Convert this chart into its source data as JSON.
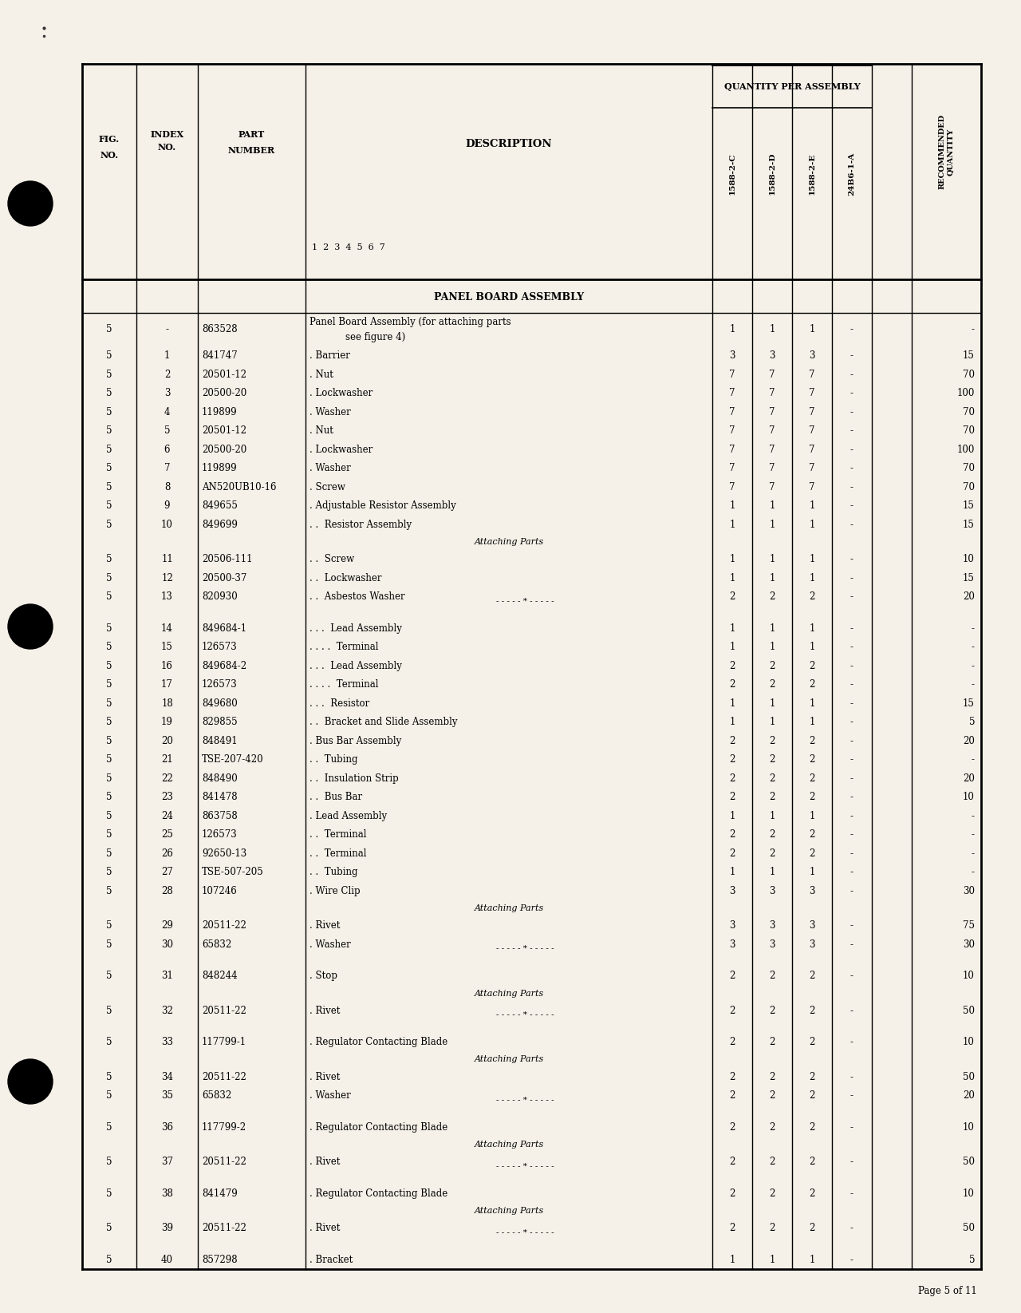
{
  "page_bg": "#f5f0e8",
  "rows": [
    {
      "fig": "5",
      "idx": "-",
      "part": "863528",
      "desc": "Panel Board Assembly (for attaching parts",
      "desc2": "see figure 4)",
      "c": "1",
      "d": "1",
      "e": "1",
      "b": "-",
      "rec": "-",
      "italic": false,
      "separator": false,
      "attaching": false
    },
    {
      "fig": "5",
      "idx": "1",
      "part": "841747",
      "desc": ". Barrier",
      "desc2": "",
      "c": "3",
      "d": "3",
      "e": "3",
      "b": "-",
      "rec": "15",
      "italic": false,
      "separator": false,
      "attaching": false
    },
    {
      "fig": "5",
      "idx": "2",
      "part": "20501-12",
      "desc": ". Nut",
      "desc2": "",
      "c": "7",
      "d": "7",
      "e": "7",
      "b": "-",
      "rec": "70",
      "italic": false,
      "separator": false,
      "attaching": false
    },
    {
      "fig": "5",
      "idx": "3",
      "part": "20500-20",
      "desc": ". Lockwasher",
      "desc2": "",
      "c": "7",
      "d": "7",
      "e": "7",
      "b": "-",
      "rec": "100",
      "italic": false,
      "separator": false,
      "attaching": false
    },
    {
      "fig": "5",
      "idx": "4",
      "part": "119899",
      "desc": ". Washer",
      "desc2": "",
      "c": "7",
      "d": "7",
      "e": "7",
      "b": "-",
      "rec": "70",
      "italic": false,
      "separator": false,
      "attaching": false
    },
    {
      "fig": "5",
      "idx": "5",
      "part": "20501-12",
      "desc": ". Nut",
      "desc2": "",
      "c": "7",
      "d": "7",
      "e": "7",
      "b": "-",
      "rec": "70",
      "italic": false,
      "separator": false,
      "attaching": false
    },
    {
      "fig": "5",
      "idx": "6",
      "part": "20500-20",
      "desc": ". Lockwasher",
      "desc2": "",
      "c": "7",
      "d": "7",
      "e": "7",
      "b": "-",
      "rec": "100",
      "italic": false,
      "separator": false,
      "attaching": false
    },
    {
      "fig": "5",
      "idx": "7",
      "part": "119899",
      "desc": ". Washer",
      "desc2": "",
      "c": "7",
      "d": "7",
      "e": "7",
      "b": "-",
      "rec": "70",
      "italic": false,
      "separator": false,
      "attaching": false
    },
    {
      "fig": "5",
      "idx": "8",
      "part": "AN520UB10-16",
      "desc": ". Screw",
      "desc2": "",
      "c": "7",
      "d": "7",
      "e": "7",
      "b": "-",
      "rec": "70",
      "italic": false,
      "separator": false,
      "attaching": false
    },
    {
      "fig": "5",
      "idx": "9",
      "part": "849655",
      "desc": ". Adjustable Resistor Assembly",
      "desc2": "",
      "c": "1",
      "d": "1",
      "e": "1",
      "b": "-",
      "rec": "15",
      "italic": false,
      "separator": false,
      "attaching": false
    },
    {
      "fig": "5",
      "idx": "10",
      "part": "849699",
      "desc": ". .  Resistor Assembly",
      "desc2": "",
      "c": "1",
      "d": "1",
      "e": "1",
      "b": "-",
      "rec": "15",
      "italic": false,
      "separator": false,
      "attaching": false
    },
    {
      "fig": "",
      "idx": "",
      "part": "",
      "desc": "Attaching Parts",
      "desc2": "",
      "c": "",
      "d": "",
      "e": "",
      "b": "",
      "rec": "",
      "italic": true,
      "separator": false,
      "attaching": true
    },
    {
      "fig": "5",
      "idx": "11",
      "part": "20506-111",
      "desc": ". .  Screw",
      "desc2": "",
      "c": "1",
      "d": "1",
      "e": "1",
      "b": "-",
      "rec": "10",
      "italic": false,
      "separator": false,
      "attaching": false
    },
    {
      "fig": "5",
      "idx": "12",
      "part": "20500-37",
      "desc": ". .  Lockwasher",
      "desc2": "",
      "c": "1",
      "d": "1",
      "e": "1",
      "b": "-",
      "rec": "15",
      "italic": false,
      "separator": false,
      "attaching": false
    },
    {
      "fig": "5",
      "idx": "13",
      "part": "820930",
      "desc": ". .  Asbestos Washer",
      "desc2": "",
      "c": "2",
      "d": "2",
      "e": "2",
      "b": "-",
      "rec": "20",
      "italic": false,
      "separator": true,
      "attaching": false
    },
    {
      "fig": "5",
      "idx": "14",
      "part": "849684-1",
      "desc": ". . .  Lead Assembly",
      "desc2": "",
      "c": "1",
      "d": "1",
      "e": "1",
      "b": "-",
      "rec": "-",
      "italic": false,
      "separator": false,
      "attaching": false
    },
    {
      "fig": "5",
      "idx": "15",
      "part": "126573",
      "desc": ". . . .  Terminal",
      "desc2": "",
      "c": "1",
      "d": "1",
      "e": "1",
      "b": "-",
      "rec": "-",
      "italic": false,
      "separator": false,
      "attaching": false
    },
    {
      "fig": "5",
      "idx": "16",
      "part": "849684-2",
      "desc": ". . .  Lead Assembly",
      "desc2": "",
      "c": "2",
      "d": "2",
      "e": "2",
      "b": "-",
      "rec": "-",
      "italic": false,
      "separator": false,
      "attaching": false
    },
    {
      "fig": "5",
      "idx": "17",
      "part": "126573",
      "desc": ". . . .  Terminal",
      "desc2": "",
      "c": "2",
      "d": "2",
      "e": "2",
      "b": "-",
      "rec": "-",
      "italic": false,
      "separator": false,
      "attaching": false
    },
    {
      "fig": "5",
      "idx": "18",
      "part": "849680",
      "desc": ". . .  Resistor",
      "desc2": "",
      "c": "1",
      "d": "1",
      "e": "1",
      "b": "-",
      "rec": "15",
      "italic": false,
      "separator": false,
      "attaching": false
    },
    {
      "fig": "5",
      "idx": "19",
      "part": "829855",
      "desc": ". .  Bracket and Slide Assembly",
      "desc2": "",
      "c": "1",
      "d": "1",
      "e": "1",
      "b": "-",
      "rec": "5",
      "italic": false,
      "separator": false,
      "attaching": false
    },
    {
      "fig": "5",
      "idx": "20",
      "part": "848491",
      "desc": ". Bus Bar Assembly",
      "desc2": "",
      "c": "2",
      "d": "2",
      "e": "2",
      "b": "-",
      "rec": "20",
      "italic": false,
      "separator": false,
      "attaching": false
    },
    {
      "fig": "5",
      "idx": "21",
      "part": "TSE-207-420",
      "desc": ". .  Tubing",
      "desc2": "",
      "c": "2",
      "d": "2",
      "e": "2",
      "b": "-",
      "rec": "-",
      "italic": false,
      "separator": false,
      "attaching": false
    },
    {
      "fig": "5",
      "idx": "22",
      "part": "848490",
      "desc": ". .  Insulation Strip",
      "desc2": "",
      "c": "2",
      "d": "2",
      "e": "2",
      "b": "-",
      "rec": "20",
      "italic": false,
      "separator": false,
      "attaching": false
    },
    {
      "fig": "5",
      "idx": "23",
      "part": "841478",
      "desc": ". .  Bus Bar",
      "desc2": "",
      "c": "2",
      "d": "2",
      "e": "2",
      "b": "-",
      "rec": "10",
      "italic": false,
      "separator": false,
      "attaching": false
    },
    {
      "fig": "5",
      "idx": "24",
      "part": "863758",
      "desc": ". Lead Assembly",
      "desc2": "",
      "c": "1",
      "d": "1",
      "e": "1",
      "b": "-",
      "rec": "-",
      "italic": false,
      "separator": false,
      "attaching": false
    },
    {
      "fig": "5",
      "idx": "25",
      "part": "126573",
      "desc": ". .  Terminal",
      "desc2": "",
      "c": "2",
      "d": "2",
      "e": "2",
      "b": "-",
      "rec": "-",
      "italic": false,
      "separator": false,
      "attaching": false
    },
    {
      "fig": "5",
      "idx": "26",
      "part": "92650-13",
      "desc": ". .  Terminal",
      "desc2": "",
      "c": "2",
      "d": "2",
      "e": "2",
      "b": "-",
      "rec": "-",
      "italic": false,
      "separator": false,
      "attaching": false
    },
    {
      "fig": "5",
      "idx": "27",
      "part": "TSE-507-205",
      "desc": ". .  Tubing",
      "desc2": "",
      "c": "1",
      "d": "1",
      "e": "1",
      "b": "-",
      "rec": "-",
      "italic": false,
      "separator": false,
      "attaching": false
    },
    {
      "fig": "5",
      "idx": "28",
      "part": "107246",
      "desc": ". Wire Clip",
      "desc2": "",
      "c": "3",
      "d": "3",
      "e": "3",
      "b": "-",
      "rec": "30",
      "italic": false,
      "separator": false,
      "attaching": false
    },
    {
      "fig": "",
      "idx": "",
      "part": "",
      "desc": "Attaching Parts",
      "desc2": "",
      "c": "",
      "d": "",
      "e": "",
      "b": "",
      "rec": "",
      "italic": true,
      "separator": false,
      "attaching": true
    },
    {
      "fig": "5",
      "idx": "29",
      "part": "20511-22",
      "desc": ". Rivet",
      "desc2": "",
      "c": "3",
      "d": "3",
      "e": "3",
      "b": "-",
      "rec": "75",
      "italic": false,
      "separator": false,
      "attaching": false
    },
    {
      "fig": "5",
      "idx": "30",
      "part": "65832",
      "desc": ". Washer",
      "desc2": "",
      "c": "3",
      "d": "3",
      "e": "3",
      "b": "-",
      "rec": "30",
      "italic": false,
      "separator": true,
      "attaching": false
    },
    {
      "fig": "5",
      "idx": "31",
      "part": "848244",
      "desc": ". Stop",
      "desc2": "",
      "c": "2",
      "d": "2",
      "e": "2",
      "b": "-",
      "rec": "10",
      "italic": false,
      "separator": false,
      "attaching": false
    },
    {
      "fig": "",
      "idx": "",
      "part": "",
      "desc": "Attaching Parts",
      "desc2": "",
      "c": "",
      "d": "",
      "e": "",
      "b": "",
      "rec": "",
      "italic": true,
      "separator": false,
      "attaching": true
    },
    {
      "fig": "5",
      "idx": "32",
      "part": "20511-22",
      "desc": ". Rivet",
      "desc2": "",
      "c": "2",
      "d": "2",
      "e": "2",
      "b": "-",
      "rec": "50",
      "italic": false,
      "separator": true,
      "attaching": false
    },
    {
      "fig": "5",
      "idx": "33",
      "part": "117799-1",
      "desc": ". Regulator Contacting Blade",
      "desc2": "",
      "c": "2",
      "d": "2",
      "e": "2",
      "b": "-",
      "rec": "10",
      "italic": false,
      "separator": false,
      "attaching": false
    },
    {
      "fig": "",
      "idx": "",
      "part": "",
      "desc": "Attaching Parts",
      "desc2": "",
      "c": "",
      "d": "",
      "e": "",
      "b": "",
      "rec": "",
      "italic": true,
      "separator": false,
      "attaching": true
    },
    {
      "fig": "5",
      "idx": "34",
      "part": "20511-22",
      "desc": ". Rivet",
      "desc2": "",
      "c": "2",
      "d": "2",
      "e": "2",
      "b": "-",
      "rec": "50",
      "italic": false,
      "separator": false,
      "attaching": false
    },
    {
      "fig": "5",
      "idx": "35",
      "part": "65832",
      "desc": ". Washer",
      "desc2": "",
      "c": "2",
      "d": "2",
      "e": "2",
      "b": "-",
      "rec": "20",
      "italic": false,
      "separator": true,
      "attaching": false
    },
    {
      "fig": "5",
      "idx": "36",
      "part": "117799-2",
      "desc": ". Regulator Contacting Blade",
      "desc2": "",
      "c": "2",
      "d": "2",
      "e": "2",
      "b": "-",
      "rec": "10",
      "italic": false,
      "separator": false,
      "attaching": false
    },
    {
      "fig": "",
      "idx": "",
      "part": "",
      "desc": "Attaching Parts",
      "desc2": "",
      "c": "",
      "d": "",
      "e": "",
      "b": "",
      "rec": "",
      "italic": true,
      "separator": false,
      "attaching": true
    },
    {
      "fig": "5",
      "idx": "37",
      "part": "20511-22",
      "desc": ". Rivet",
      "desc2": "",
      "c": "2",
      "d": "2",
      "e": "2",
      "b": "-",
      "rec": "50",
      "italic": false,
      "separator": true,
      "attaching": false
    },
    {
      "fig": "5",
      "idx": "38",
      "part": "841479",
      "desc": ". Regulator Contacting Blade",
      "desc2": "",
      "c": "2",
      "d": "2",
      "e": "2",
      "b": "-",
      "rec": "10",
      "italic": false,
      "separator": false,
      "attaching": false
    },
    {
      "fig": "",
      "idx": "",
      "part": "",
      "desc": "Attaching Parts",
      "desc2": "",
      "c": "",
      "d": "",
      "e": "",
      "b": "",
      "rec": "",
      "italic": true,
      "separator": false,
      "attaching": true
    },
    {
      "fig": "5",
      "idx": "39",
      "part": "20511-22",
      "desc": ". Rivet",
      "desc2": "",
      "c": "2",
      "d": "2",
      "e": "2",
      "b": "-",
      "rec": "50",
      "italic": false,
      "separator": true,
      "attaching": false
    },
    {
      "fig": "5",
      "idx": "40",
      "part": "857298",
      "desc": ". Bracket",
      "desc2": "",
      "c": "1",
      "d": "1",
      "e": "1",
      "b": "-",
      "rec": "5",
      "italic": false,
      "separator": false,
      "attaching": false
    }
  ]
}
